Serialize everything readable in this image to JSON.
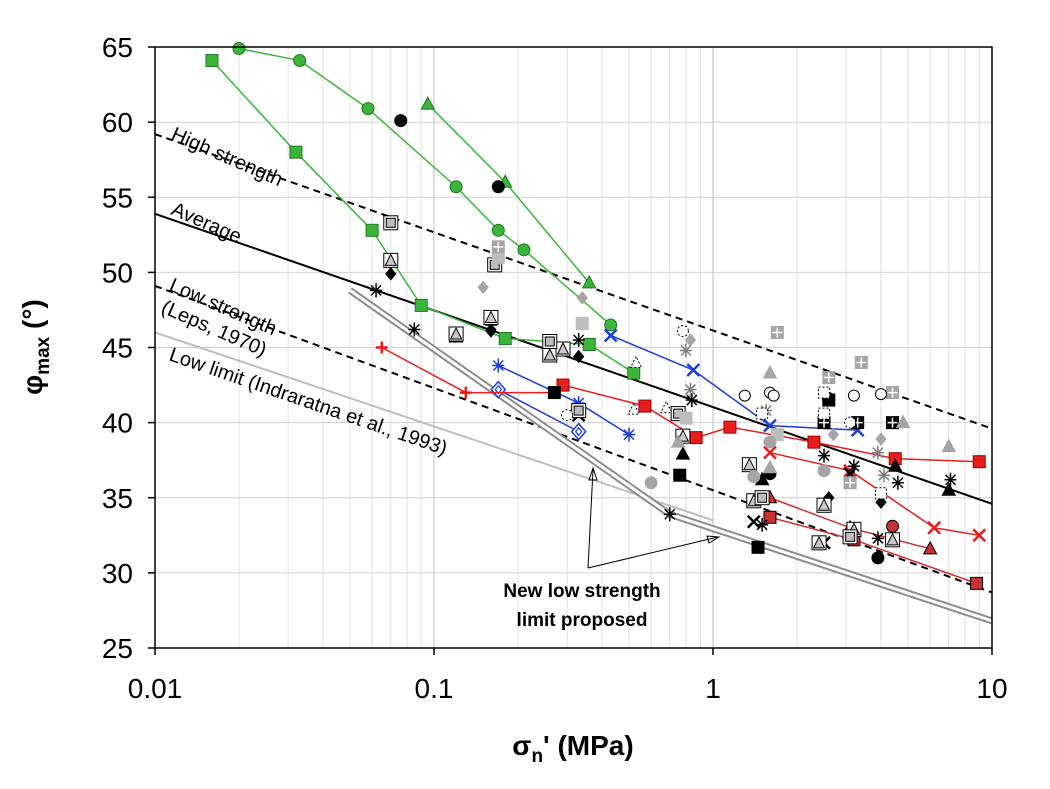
{
  "chart_data": {
    "type": "scatter",
    "x_scale": "log",
    "xlim": [
      0.01,
      10
    ],
    "ylim": [
      25,
      65
    ],
    "grid": true,
    "legend": "none",
    "x_ticks": [
      "0.01",
      "0.1",
      "1",
      "10"
    ],
    "y_ticks": [
      "25",
      "30",
      "35",
      "40",
      "45",
      "50",
      "55",
      "60",
      "65"
    ],
    "xlabel": {
      "main": "σ",
      "sub": "n",
      "rest": "' (MPa)"
    },
    "ylabel": {
      "main": "φ",
      "sub": "max",
      "rest": " (°)"
    },
    "reference_lines": [
      {
        "name": "High strength",
        "style": "dashed",
        "color": "#000000",
        "points": [
          [
            0.01,
            59.2
          ],
          [
            10,
            39.6
          ]
        ]
      },
      {
        "name": "Average",
        "style": "solid",
        "color": "#000000",
        "points": [
          [
            0.01,
            53.9
          ],
          [
            10,
            34.6
          ]
        ]
      },
      {
        "name": "Low strength (Leps, 1970)",
        "style": "dashed",
        "color": "#000000",
        "points": [
          [
            0.01,
            49.1
          ],
          [
            10,
            28.7
          ]
        ]
      },
      {
        "name": "Low limit (Indraratna et al., 1993)",
        "style": "solid",
        "color": "#bdbdbd",
        "points": [
          [
            0.01,
            46.0
          ],
          [
            1.0,
            33.5
          ]
        ]
      },
      {
        "name": "New low strength limit proposed",
        "style": "double-gray",
        "color": "#8c8c8c",
        "points": [
          [
            0.05,
            48.8
          ],
          [
            0.7,
            33.9
          ],
          [
            10,
            26.8
          ]
        ]
      }
    ],
    "annotations": {
      "high_strength": "High strength",
      "average": "Average",
      "low_strength_1": "Low strength",
      "low_strength_2": "(Leps, 1970)",
      "low_limit": "Low limit (Indraratna et al., 1993)",
      "proposed_1": "New low strength",
      "proposed_2": "limit proposed"
    },
    "series": [
      {
        "marker": "square",
        "color": "#3cb43c",
        "edge": "#1e7a1e",
        "line": true,
        "points": [
          [
            0.016,
            64.1
          ],
          [
            0.032,
            58.0
          ],
          [
            0.06,
            52.8
          ],
          [
            0.09,
            47.8
          ],
          [
            0.18,
            45.6
          ],
          [
            0.36,
            45.2
          ],
          [
            0.52,
            43.3
          ]
        ]
      },
      {
        "marker": "circle",
        "color": "#3cb43c",
        "edge": "#1e7a1e",
        "line": true,
        "points": [
          [
            0.02,
            64.9
          ],
          [
            0.033,
            64.1
          ],
          [
            0.058,
            60.9
          ],
          [
            0.12,
            55.7
          ],
          [
            0.17,
            52.8
          ],
          [
            0.21,
            51.5
          ],
          [
            0.43,
            46.5
          ]
        ]
      },
      {
        "marker": "triangle",
        "color": "#3cb43c",
        "edge": "#1e7a1e",
        "line": true,
        "points": [
          [
            0.095,
            61.2
          ],
          [
            0.18,
            56.0
          ],
          [
            0.36,
            49.3
          ]
        ]
      },
      {
        "marker": "asterisk",
        "color": "#1e3cdc",
        "line": true,
        "points": [
          [
            0.17,
            43.8
          ],
          [
            0.33,
            41.3
          ],
          [
            0.5,
            39.2
          ]
        ]
      },
      {
        "marker": "cross",
        "color": "#1e3cdc",
        "line": true,
        "points": [
          [
            0.43,
            45.8
          ],
          [
            0.85,
            43.5
          ],
          [
            1.6,
            39.8
          ],
          [
            3.3,
            39.5
          ]
        ]
      },
      {
        "marker": "diamond-open",
        "color": "#1e3cdc",
        "line": true,
        "points": [
          [
            0.17,
            42.2
          ],
          [
            0.33,
            39.4
          ]
        ]
      },
      {
        "marker": "plus",
        "color": "#e61e1e",
        "line": true,
        "points": [
          [
            0.065,
            45.0
          ],
          [
            0.13,
            42.0
          ],
          [
            0.27,
            42.0
          ]
        ]
      },
      {
        "marker": "square",
        "color": "#e61e1e",
        "edge": "#a00000",
        "line": true,
        "points": [
          [
            0.29,
            42.5
          ],
          [
            0.57,
            41.1
          ],
          [
            0.87,
            39.0
          ],
          [
            1.15,
            39.7
          ],
          [
            2.3,
            38.7
          ],
          [
            4.5,
            37.6
          ],
          [
            9.0,
            37.4
          ]
        ]
      },
      {
        "marker": "cross",
        "color": "#e61e1e",
        "line": true,
        "points": [
          [
            1.6,
            38.0
          ],
          [
            3.1,
            36.8
          ],
          [
            6.2,
            33.0
          ],
          [
            9.0,
            32.5
          ]
        ]
      },
      {
        "marker": "triangle",
        "color": "#c83232",
        "edge": "#000000",
        "line": true,
        "points": [
          [
            1.6,
            35.0
          ],
          [
            3.1,
            33.0
          ],
          [
            6.0,
            31.6
          ]
        ]
      },
      {
        "marker": "square",
        "color": "#c83232",
        "edge": "#000000",
        "line": true,
        "points": [
          [
            1.6,
            33.7
          ],
          [
            3.2,
            32.2
          ],
          [
            8.8,
            29.3
          ]
        ]
      },
      {
        "marker": "circle",
        "color": "#c83232",
        "edge": "#000000",
        "line": false,
        "points": [
          [
            4.4,
            33.1
          ]
        ]
      },
      {
        "marker": "circle",
        "color": "#000000",
        "line": false,
        "points": [
          [
            0.076,
            60.1
          ],
          [
            0.17,
            55.7
          ],
          [
            2.6,
            41.6
          ],
          [
            1.6,
            36.6
          ],
          [
            3.9,
            31.0
          ]
        ]
      },
      {
        "marker": "diamond",
        "color": "#000000",
        "line": false,
        "points": [
          [
            0.07,
            49.9
          ],
          [
            0.16,
            46.1
          ],
          [
            0.33,
            44.4
          ],
          [
            2.6,
            35.0
          ],
          [
            4.0,
            34.7
          ]
        ]
      },
      {
        "marker": "triangle",
        "color": "#000000",
        "line": false,
        "points": [
          [
            0.12,
            45.7
          ],
          [
            0.26,
            44.6
          ],
          [
            0.78,
            37.9
          ],
          [
            1.5,
            36.2
          ],
          [
            4.5,
            37.1
          ],
          [
            7.0,
            35.5
          ]
        ]
      },
      {
        "marker": "square",
        "color": "#000000",
        "line": false,
        "points": [
          [
            0.27,
            42.0
          ],
          [
            0.76,
            36.5
          ],
          [
            1.45,
            31.7
          ],
          [
            2.6,
            41.5
          ]
        ]
      },
      {
        "marker": "asterisk",
        "color": "#000000",
        "line": false,
        "points": [
          [
            0.062,
            48.8
          ],
          [
            0.085,
            46.2
          ],
          [
            0.16,
            46.5
          ],
          [
            0.33,
            45.5
          ],
          [
            0.7,
            33.9
          ],
          [
            0.84,
            41.5
          ],
          [
            1.5,
            33.2
          ],
          [
            2.5,
            37.8
          ],
          [
            3.2,
            37.1
          ],
          [
            3.9,
            32.3
          ],
          [
            4.6,
            36.0
          ],
          [
            7.1,
            36.2
          ]
        ]
      },
      {
        "marker": "cross",
        "color": "#000000",
        "line": false,
        "points": [
          [
            0.33,
            40.5
          ],
          [
            1.4,
            33.4
          ],
          [
            2.5,
            32.0
          ],
          [
            3.1,
            36.6
          ]
        ]
      },
      {
        "marker": "triangle-boxed",
        "color": "#c8c8c8",
        "edge": "#000000",
        "line": false,
        "points": [
          [
            0.07,
            50.8
          ],
          [
            0.12,
            45.9
          ],
          [
            0.16,
            47.0
          ],
          [
            0.26,
            44.5
          ],
          [
            0.29,
            44.9
          ],
          [
            0.78,
            39.1
          ],
          [
            1.35,
            37.2
          ],
          [
            1.4,
            34.8
          ],
          [
            2.4,
            32.0
          ],
          [
            2.5,
            34.5
          ],
          [
            3.2,
            32.9
          ],
          [
            4.4,
            32.2
          ]
        ]
      },
      {
        "marker": "square-boxed",
        "color": "#bdbdbd",
        "edge": "#000000",
        "line": false,
        "points": [
          [
            0.07,
            53.3
          ],
          [
            0.165,
            50.5
          ],
          [
            0.26,
            45.4
          ],
          [
            0.33,
            40.8
          ],
          [
            0.75,
            40.6
          ],
          [
            1.5,
            35.0
          ],
          [
            3.1,
            32.4
          ]
        ]
      },
      {
        "marker": "square",
        "color": "#bdbdbd",
        "line": false,
        "points": [
          [
            0.17,
            51.0
          ],
          [
            0.34,
            46.6
          ],
          [
            0.8,
            40.3
          ],
          [
            1.7,
            39.2
          ],
          [
            4.4,
            40.0
          ]
        ]
      },
      {
        "marker": "plus-box",
        "color": "#a5a5a5",
        "line": false,
        "points": [
          [
            0.17,
            51.7
          ],
          [
            1.7,
            46.0
          ],
          [
            2.6,
            43.0
          ],
          [
            3.4,
            44.0
          ],
          [
            4.4,
            42.0
          ],
          [
            3.1,
            36.0
          ]
        ]
      },
      {
        "marker": "plus-box",
        "color": "#000000",
        "line": false,
        "points": [
          [
            2.5,
            40.0
          ],
          [
            3.3,
            40.0
          ],
          [
            4.4,
            40.0
          ]
        ]
      },
      {
        "marker": "circle",
        "color": "#a5a5a5",
        "line": false,
        "points": [
          [
            0.6,
            36.0
          ],
          [
            1.4,
            36.4
          ],
          [
            2.5,
            36.8
          ],
          [
            1.6,
            38.7
          ]
        ]
      },
      {
        "marker": "diamond",
        "color": "#a5a5a5",
        "line": false,
        "points": [
          [
            0.15,
            49.0
          ],
          [
            0.34,
            48.3
          ],
          [
            0.83,
            45.5
          ],
          [
            2.7,
            39.2
          ],
          [
            4.0,
            38.9
          ]
        ]
      },
      {
        "marker": "triangle",
        "color": "#a5a5a5",
        "line": false,
        "points": [
          [
            1.6,
            43.3
          ],
          [
            4.8,
            40.0
          ],
          [
            7.0,
            38.4
          ],
          [
            0.75,
            38.7
          ],
          [
            1.6,
            37.0
          ]
        ]
      },
      {
        "marker": "asterisk",
        "color": "#7f7f7f",
        "line": false,
        "points": [
          [
            0.8,
            44.8
          ],
          [
            0.83,
            42.2
          ],
          [
            1.55,
            40.8
          ],
          [
            3.9,
            38.0
          ],
          [
            4.1,
            36.5
          ]
        ]
      },
      {
        "marker": "circle-open",
        "color": "#000000",
        "line": false,
        "points": [
          [
            1.3,
            41.8
          ],
          [
            1.6,
            42.0
          ],
          [
            1.65,
            41.8
          ],
          [
            3.2,
            41.8
          ],
          [
            4.0,
            41.9
          ]
        ]
      },
      {
        "marker": "circle-open-dotted",
        "color": "#000000",
        "line": false,
        "points": [
          [
            0.78,
            46.1
          ],
          [
            3.1,
            40.0
          ],
          [
            0.3,
            40.5
          ]
        ]
      },
      {
        "marker": "triangle-open-dotted",
        "color": "#000000",
        "line": false,
        "points": [
          [
            0.52,
            40.9
          ],
          [
            0.53,
            44.0
          ],
          [
            0.68,
            41.0
          ]
        ]
      },
      {
        "marker": "square-open-dotted",
        "color": "#000000",
        "line": false,
        "points": [
          [
            1.5,
            40.6
          ],
          [
            2.5,
            42.0
          ],
          [
            2.5,
            40.6
          ],
          [
            4.0,
            35.3
          ]
        ]
      }
    ]
  }
}
